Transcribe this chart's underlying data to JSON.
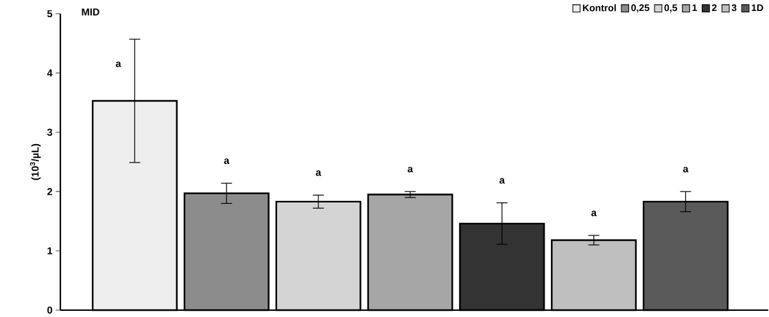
{
  "chart_data": {
    "type": "bar",
    "title": "MID",
    "ylabel": "(10$^{3}$/µL)",
    "categories": [
      null,
      null,
      null,
      null,
      null,
      null,
      null
    ],
    "series": [
      {
        "name": "Kontrol",
        "color": "#eeeeee",
        "values": [
          3.53,
          null,
          null,
          null,
          null,
          null,
          null
        ],
        "errors": [
          1.04,
          null,
          null,
          null,
          null,
          null,
          null
        ]
      },
      {
        "name": "0,25",
        "color": "#8c8c8c",
        "values": [
          null,
          1.97,
          null,
          null,
          null,
          null,
          null
        ],
        "errors": [
          null,
          0.17,
          null,
          null,
          null,
          null,
          null
        ]
      },
      {
        "name": "0,5",
        "color": "#d4d4d4",
        "values": [
          null,
          null,
          1.83,
          null,
          null,
          null,
          null
        ],
        "errors": [
          null,
          null,
          0.11,
          null,
          null,
          null,
          null
        ]
      },
      {
        "name": "1",
        "color": "#a6a6a6",
        "values": [
          null,
          null,
          null,
          1.95,
          null,
          null,
          null
        ],
        "errors": [
          null,
          null,
          null,
          0.05,
          null,
          null,
          null
        ]
      },
      {
        "name": "2",
        "color": "#333333",
        "values": [
          null,
          null,
          null,
          null,
          1.46,
          null,
          null
        ],
        "errors": [
          null,
          null,
          null,
          null,
          0.35,
          null,
          null
        ]
      },
      {
        "name": "3",
        "color": "#bfbfbf",
        "values": [
          null,
          null,
          null,
          null,
          null,
          1.18,
          null
        ],
        "errors": [
          null,
          null,
          null,
          null,
          null,
          0.08,
          null
        ]
      },
      {
        "name": "1D",
        "color": "#5a5a5a",
        "values": [
          null,
          null,
          null,
          null,
          null,
          null,
          1.83
        ],
        "errors": [
          null,
          null,
          null,
          null,
          null,
          null,
          0.17
        ]
      }
    ],
    "ylim": [
      0,
      5
    ],
    "yticks": [
      0,
      1,
      2,
      3,
      4,
      5
    ],
    "grid": false,
    "legend": "top right",
    "annotations": [
      "a",
      "a",
      "a",
      "a",
      "a",
      "a",
      "a"
    ]
  }
}
